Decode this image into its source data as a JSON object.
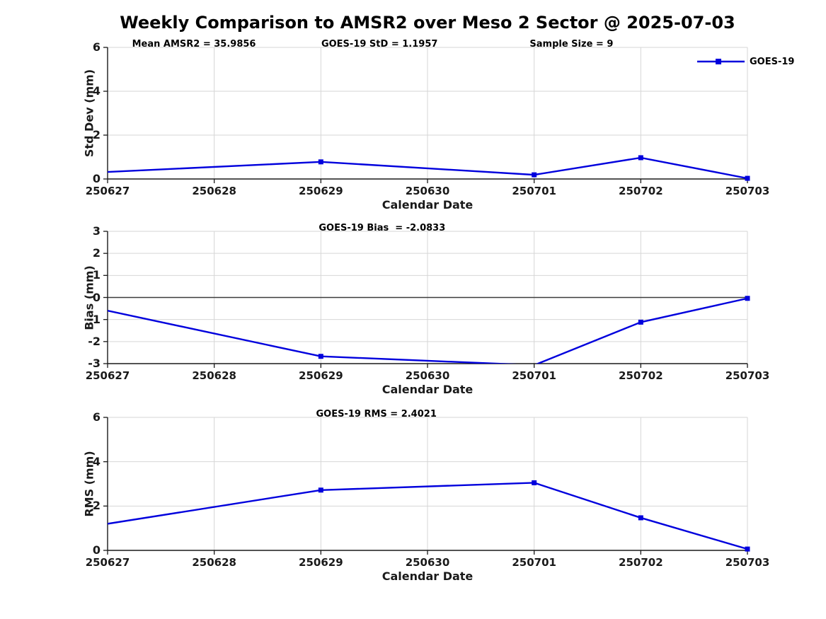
{
  "title": "Weekly Comparison to AMSR2 over Meso 2 Sector @ 2025-07-03",
  "legend": {
    "label": "GOES-19",
    "color": "#0000dd"
  },
  "colors": {
    "line": "#0000dd",
    "grid": "#d6d6d6",
    "axis": "#1a1a1a",
    "zero_line": "#3c3c3c",
    "background": "#ffffff"
  },
  "stats": {
    "mean_amsr2": 35.9856,
    "goes19_std": 1.1957,
    "sample_size": 9,
    "goes19_bias": -2.0833,
    "goes19_rms": 2.4021
  },
  "chart_data": [
    {
      "type": "line",
      "name": "std-dev-subplot",
      "ylabel": "Std Dev (mm)",
      "xlabel": "Calendar Date",
      "ylim": [
        0,
        6
      ],
      "yticks": [
        0,
        2,
        4,
        6
      ],
      "xticklabels": [
        "250627",
        "250628",
        "250629",
        "250630",
        "250701",
        "250702",
        "250703"
      ],
      "grid": true,
      "zero_line": false,
      "legend_position": "outside-right-top",
      "annotations": [
        {
          "text": "Mean AMSR2 = 35.9856",
          "xfrac": 0.135
        },
        {
          "text": "GOES-19 StD = 1.1957",
          "xfrac": 0.425
        },
        {
          "text": "Sample Size = 9",
          "xfrac": 0.725
        }
      ],
      "series": [
        {
          "name": "GOES-19",
          "color": "#0000dd",
          "marker": "square",
          "x_dates": [
            "250627",
            "250629",
            "250701",
            "250702",
            "250703"
          ],
          "x_offsets": [
            0,
            2,
            4,
            5,
            6
          ],
          "values": [
            0.32,
            0.78,
            0.19,
            0.97,
            0.03
          ],
          "marker_shown": [
            false,
            true,
            true,
            true,
            true
          ]
        }
      ]
    },
    {
      "type": "line",
      "name": "bias-subplot",
      "ylabel": "Bias (mm)",
      "xlabel": "Calendar Date",
      "ylim": [
        -3,
        3
      ],
      "yticks": [
        -3,
        -2,
        -1,
        0,
        1,
        2,
        3
      ],
      "xticklabels": [
        "250627",
        "250628",
        "250629",
        "250630",
        "250701",
        "250702",
        "250703"
      ],
      "grid": true,
      "zero_line": true,
      "annotations": [
        {
          "text": "GOES-19 Bias  = -2.0833",
          "xfrac": 0.429
        }
      ],
      "series": [
        {
          "name": "GOES-19",
          "color": "#0000dd",
          "marker": "square",
          "x_dates": [
            "250627",
            "250629",
            "250701",
            "250702",
            "250703"
          ],
          "x_offsets": [
            0,
            2,
            4,
            5,
            6
          ],
          "values": [
            -0.6,
            -2.67,
            -3.07,
            -1.12,
            -0.04
          ],
          "marker_shown": [
            false,
            true,
            true,
            true,
            true
          ]
        }
      ]
    },
    {
      "type": "line",
      "name": "rms-subplot",
      "ylabel": "RMS (mm)",
      "xlabel": "Calendar Date",
      "ylim": [
        0,
        6
      ],
      "yticks": [
        0,
        2,
        4,
        6
      ],
      "xticklabels": [
        "250627",
        "250628",
        "250629",
        "250630",
        "250701",
        "250702",
        "250703"
      ],
      "grid": true,
      "zero_line": false,
      "annotations": [
        {
          "text": "GOES-19 RMS = 2.4021",
          "xfrac": 0.42
        }
      ],
      "series": [
        {
          "name": "GOES-19",
          "color": "#0000dd",
          "marker": "square",
          "x_dates": [
            "250627",
            "250629",
            "250701",
            "250702",
            "250703"
          ],
          "x_offsets": [
            0,
            2,
            4,
            5,
            6
          ],
          "values": [
            1.2,
            2.72,
            3.05,
            1.47,
            0.06
          ],
          "marker_shown": [
            false,
            true,
            true,
            true,
            true
          ]
        }
      ]
    }
  ]
}
